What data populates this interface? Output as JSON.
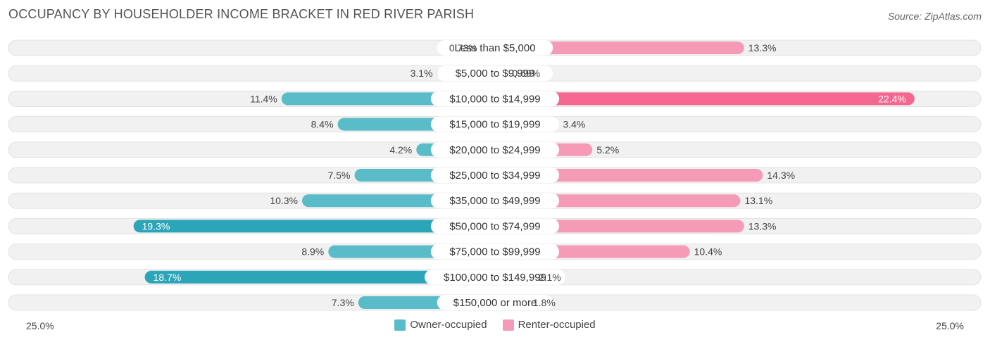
{
  "title": "OCCUPANCY BY HOUSEHOLDER INCOME BRACKET IN RED RIVER PARISH",
  "source": "Source: ZipAtlas.com",
  "colors": {
    "owner": "#5bbcc9",
    "owner_strong": "#2ca5b8",
    "renter": "#f59ab7",
    "renter_strong": "#f4678f",
    "track": "#f1f1f1"
  },
  "legend": {
    "owner": "Owner-occupied",
    "renter": "Renter-occupied"
  },
  "axis": {
    "left_label": "25.0%",
    "right_label": "25.0%"
  },
  "chart_data": {
    "type": "bar",
    "orientation": "diverging-horizontal",
    "title": "OCCUPANCY BY HOUSEHOLDER INCOME BRACKET IN RED RIVER PARISH",
    "xlim": [
      -25,
      25
    ],
    "categories": [
      "Less than $5,000",
      "$5,000 to $9,999",
      "$10,000 to $14,999",
      "$15,000 to $19,999",
      "$20,000 to $24,999",
      "$25,000 to $34,999",
      "$35,000 to $49,999",
      "$50,000 to $74,999",
      "$75,000 to $99,999",
      "$100,000 to $149,999",
      "$150,000 or more"
    ],
    "series": [
      {
        "name": "Owner-occupied",
        "values": [
          0.73,
          3.1,
          11.4,
          8.4,
          4.2,
          7.5,
          10.3,
          19.3,
          8.9,
          18.7,
          7.3
        ],
        "labels": [
          "0.73%",
          "3.1%",
          "11.4%",
          "8.4%",
          "4.2%",
          "7.5%",
          "10.3%",
          "19.3%",
          "8.9%",
          "18.7%",
          "7.3%"
        ]
      },
      {
        "name": "Renter-occupied",
        "values": [
          13.3,
          0.69,
          22.4,
          3.4,
          5.2,
          14.3,
          13.1,
          13.3,
          10.4,
          2.1,
          1.8
        ],
        "labels": [
          "13.3%",
          "0.69%",
          "22.4%",
          "3.4%",
          "5.2%",
          "14.3%",
          "13.1%",
          "13.3%",
          "10.4%",
          "2.1%",
          "1.8%"
        ]
      }
    ]
  }
}
